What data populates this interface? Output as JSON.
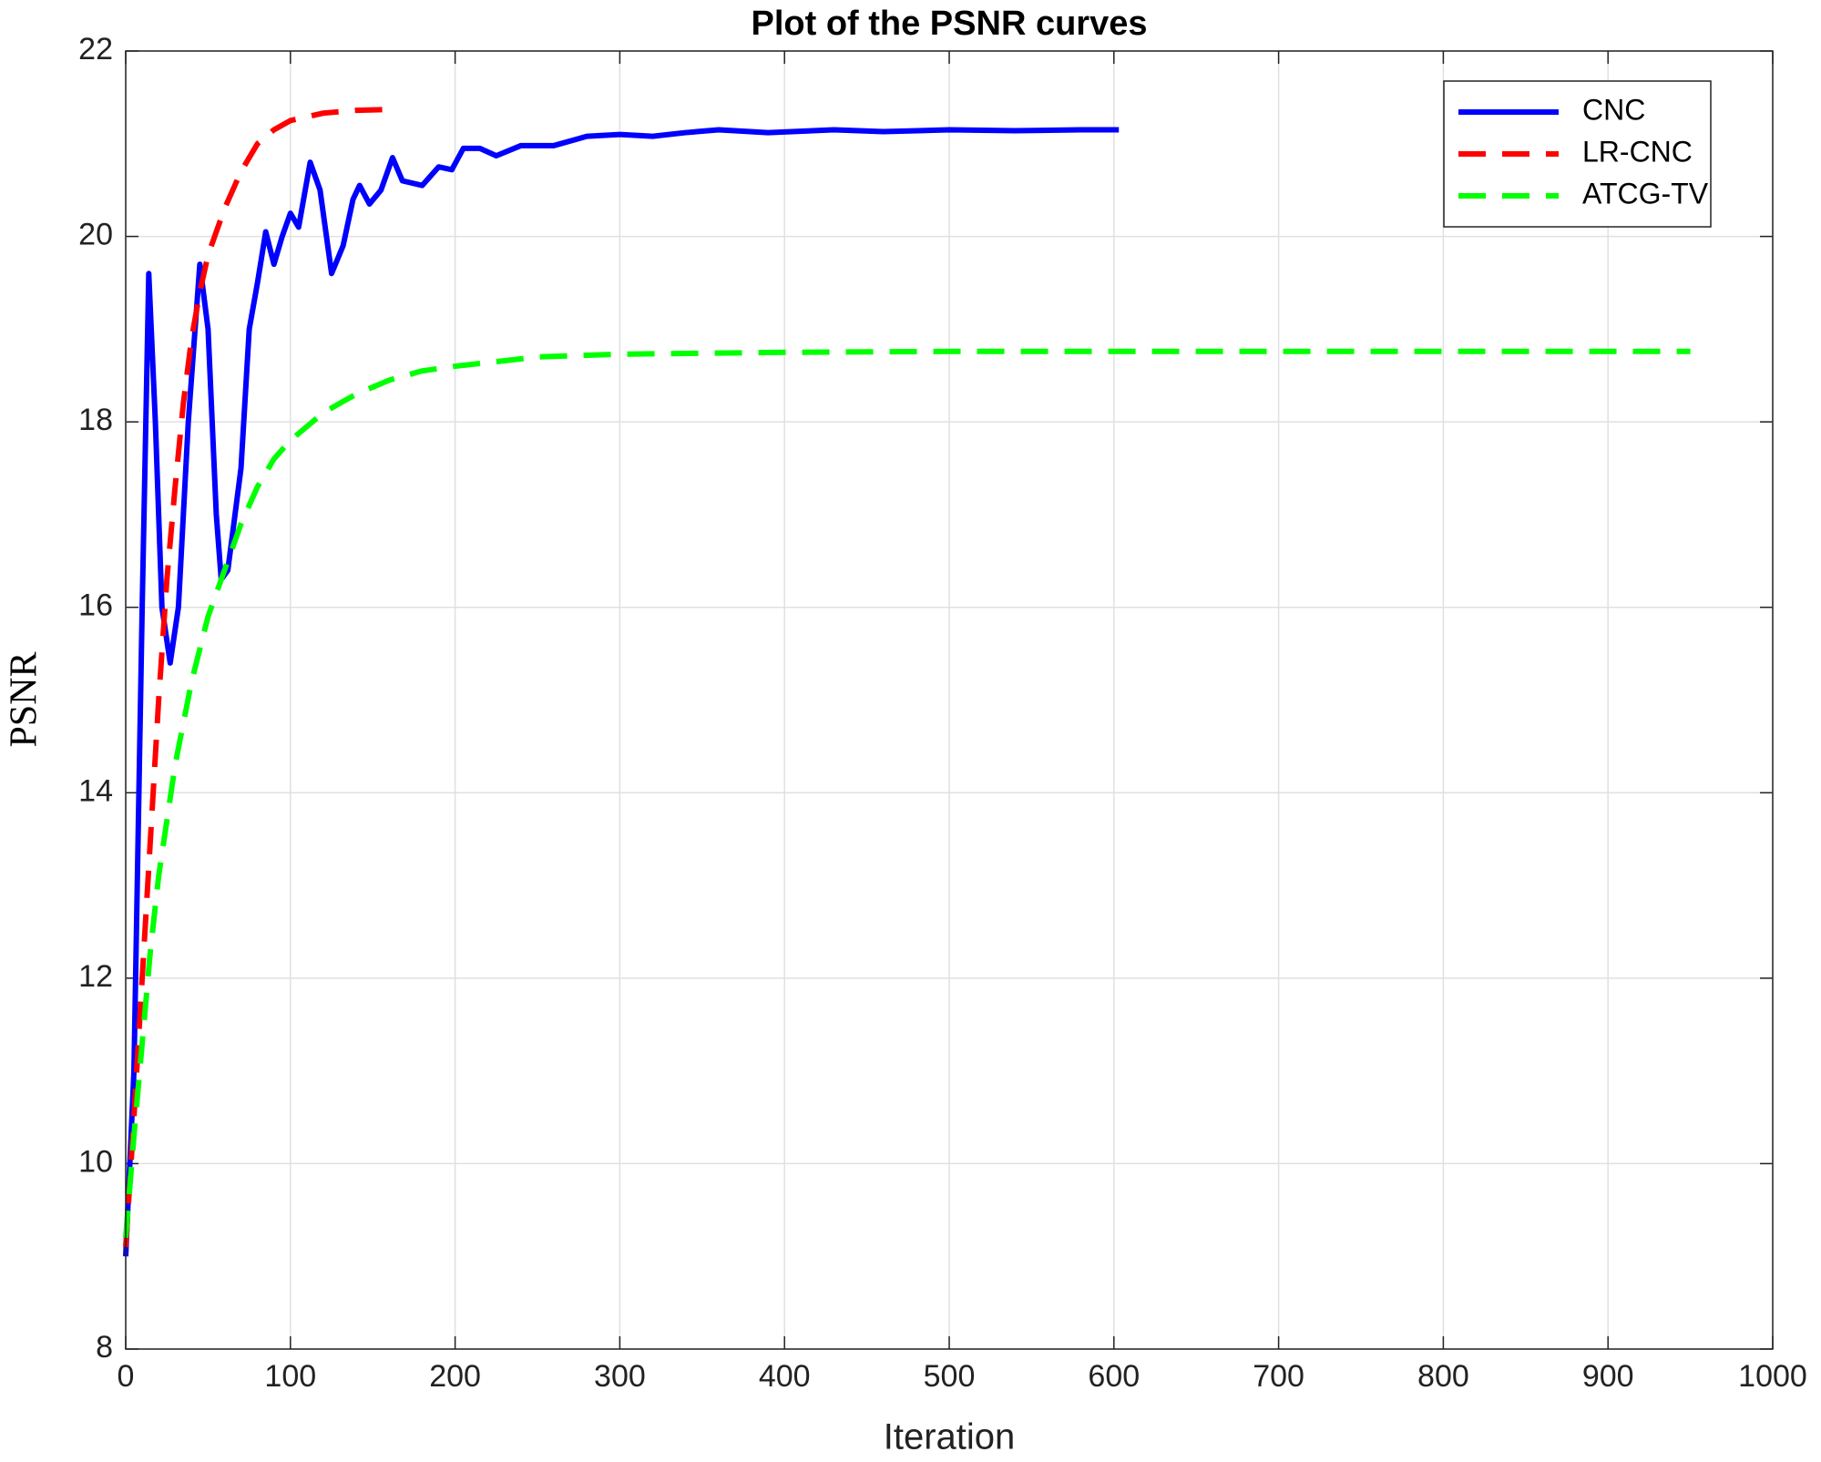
{
  "chart_data": {
    "type": "line",
    "title": "Plot of the PSNR curves",
    "xlabel": "Iteration",
    "ylabel": "PSNR",
    "xlim": [
      0,
      1000
    ],
    "xticks": [
      0,
      100,
      200,
      300,
      400,
      500,
      600,
      700,
      800,
      900,
      1000
    ],
    "ylim": [
      8,
      22
    ],
    "yticks": [
      8,
      10,
      12,
      14,
      16,
      18,
      20,
      22
    ],
    "grid": true,
    "legend": "top-right",
    "series": [
      {
        "name": "CNC",
        "color": "#0000ff",
        "style": "solid",
        "x": [
          0,
          5,
          10,
          14,
          18,
          22,
          27,
          32,
          38,
          45,
          50,
          55,
          58,
          62,
          70,
          75,
          80,
          85,
          90,
          95,
          100,
          105,
          112,
          118,
          125,
          132,
          138,
          142,
          148,
          155,
          162,
          168,
          180,
          190,
          198,
          205,
          215,
          225,
          240,
          260,
          280,
          300,
          320,
          340,
          360,
          390,
          430,
          460,
          500,
          540,
          580,
          603
        ],
        "values": [
          9,
          11,
          16,
          19.6,
          18,
          16,
          15.4,
          16,
          18,
          19.7,
          19,
          17,
          16.3,
          16.4,
          17.5,
          19,
          19.5,
          20.05,
          19.7,
          20,
          20.25,
          20.1,
          20.8,
          20.5,
          19.6,
          19.9,
          20.4,
          20.55,
          20.35,
          20.5,
          20.85,
          20.6,
          20.55,
          20.75,
          20.72,
          20.95,
          20.95,
          20.87,
          20.98,
          20.98,
          21.08,
          21.1,
          21.08,
          21.12,
          21.15,
          21.12,
          21.15,
          21.13,
          21.15,
          21.14,
          21.15,
          21.15
        ]
      },
      {
        "name": "LR-CNC",
        "color": "#ff0000",
        "style": "dashed",
        "x": [
          0,
          5,
          10,
          15,
          20,
          25,
          30,
          35,
          40,
          45,
          50,
          60,
          70,
          80,
          90,
          100,
          120,
          140,
          160
        ],
        "values": [
          9.1,
          10.5,
          12,
          13.5,
          15,
          16.3,
          17.3,
          18.2,
          18.9,
          19.4,
          19.8,
          20.3,
          20.7,
          21,
          21.15,
          21.25,
          21.33,
          21.36,
          21.37
        ]
      },
      {
        "name": "ATCG-TV",
        "color": "#00ff00",
        "style": "dashed",
        "x": [
          0,
          5,
          10,
          15,
          20,
          30,
          40,
          50,
          60,
          70,
          80,
          90,
          100,
          120,
          140,
          160,
          180,
          200,
          250,
          300,
          400,
          500,
          600,
          700,
          800,
          950
        ],
        "values": [
          9.2,
          10.3,
          11.3,
          12.3,
          13.1,
          14.3,
          15.2,
          15.9,
          16.4,
          16.9,
          17.3,
          17.6,
          17.8,
          18.1,
          18.3,
          18.45,
          18.55,
          18.6,
          18.7,
          18.73,
          18.75,
          18.76,
          18.76,
          18.76,
          18.76,
          18.76
        ]
      }
    ]
  }
}
